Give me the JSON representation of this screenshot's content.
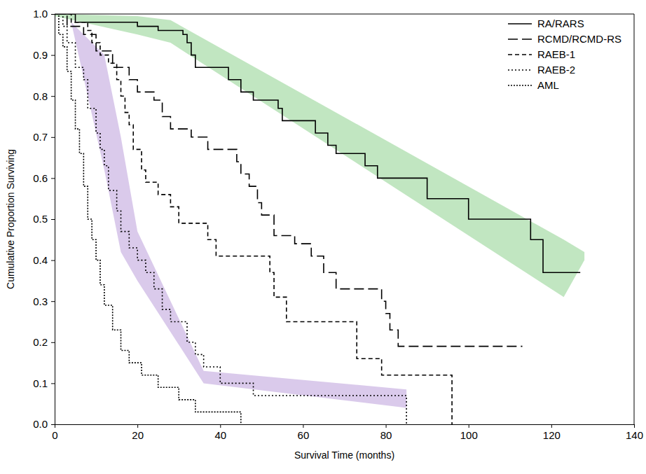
{
  "chart_data": {
    "type": "line",
    "x_label": "Survival Time (months)",
    "y_label": "Cumulative Proportion Surviving",
    "xlim": [
      0,
      140
    ],
    "ylim": [
      0,
      1
    ],
    "xticks": [
      0,
      20,
      40,
      60,
      80,
      100,
      120,
      140
    ],
    "yticks": [
      {
        "value": 0,
        "label": "0.0"
      },
      0.1,
      0.2,
      0.3,
      0.4,
      0.5,
      0.6,
      0.7,
      0.8,
      0.9,
      {
        "value": 1,
        "label": "1.0"
      }
    ],
    "legend": "upper right",
    "bands": [
      {
        "color": "#9fd89f",
        "x": [
          0,
          20,
          28,
          123,
          128
        ],
        "upper": [
          1.0,
          0.995,
          0.985,
          0.45,
          0.42
        ],
        "lower": [
          0.995,
          0.95,
          0.93,
          0.31,
          0.4
        ]
      },
      {
        "color": "#c6aee0",
        "x": [
          4,
          12,
          16,
          20,
          36,
          85
        ],
        "upper": [
          0.98,
          0.9,
          0.7,
          0.47,
          0.13,
          0.085
        ],
        "lower": [
          0.98,
          0.62,
          0.42,
          0.35,
          0.1,
          0.04
        ]
      }
    ],
    "series": [
      {
        "name": "RA/RARS",
        "color": "#000000",
        "line_style": "solid",
        "x": [
          0,
          5,
          20,
          25,
          31,
          32,
          33,
          34,
          42,
          45,
          48,
          54,
          55,
          63,
          66,
          68,
          75,
          78,
          90,
          100,
          115,
          118,
          127
        ],
        "values": [
          1.0,
          0.98,
          0.97,
          0.96,
          0.95,
          0.93,
          0.9,
          0.87,
          0.84,
          0.81,
          0.79,
          0.77,
          0.74,
          0.71,
          0.68,
          0.66,
          0.63,
          0.6,
          0.55,
          0.5,
          0.45,
          0.37,
          0.37
        ]
      },
      {
        "name": "RCMD/RCMD-RS",
        "color": "#000000",
        "line_style": "long_dash",
        "x": [
          0,
          3,
          7,
          10,
          14,
          18,
          20,
          24,
          26,
          28,
          33,
          37,
          44,
          45,
          47,
          49,
          50,
          53,
          58,
          62,
          65,
          68,
          79,
          80,
          81,
          83,
          113
        ],
        "values": [
          1.0,
          0.97,
          0.95,
          0.91,
          0.87,
          0.84,
          0.81,
          0.79,
          0.75,
          0.72,
          0.7,
          0.67,
          0.64,
          0.61,
          0.58,
          0.54,
          0.51,
          0.46,
          0.44,
          0.41,
          0.37,
          0.33,
          0.3,
          0.27,
          0.23,
          0.19,
          0.19
        ]
      },
      {
        "name": "RAEB-1",
        "color": "#000000",
        "line_style": "dashed",
        "x": [
          0,
          4,
          8,
          9,
          11,
          13,
          15,
          16,
          17,
          18,
          19,
          21,
          22,
          25,
          28,
          30,
          37,
          39,
          52,
          53,
          56,
          73,
          79,
          96
        ],
        "values": [
          1.0,
          0.98,
          0.96,
          0.93,
          0.9,
          0.88,
          0.84,
          0.8,
          0.76,
          0.73,
          0.67,
          0.62,
          0.59,
          0.56,
          0.53,
          0.49,
          0.45,
          0.41,
          0.37,
          0.31,
          0.25,
          0.16,
          0.12,
          0.0
        ]
      },
      {
        "name": "RAEB-2",
        "color": "#000000",
        "line_style": "dotted",
        "x": [
          0,
          2,
          3,
          5,
          7,
          8,
          10,
          11,
          12,
          13,
          15,
          16,
          18,
          20,
          22,
          24,
          26,
          28,
          32,
          34,
          36,
          40,
          48,
          85
        ],
        "values": [
          1.0,
          0.97,
          0.93,
          0.87,
          0.84,
          0.77,
          0.71,
          0.67,
          0.63,
          0.57,
          0.52,
          0.47,
          0.43,
          0.4,
          0.37,
          0.33,
          0.28,
          0.25,
          0.2,
          0.17,
          0.14,
          0.1,
          0.07,
          0.0
        ]
      },
      {
        "name": "AML",
        "color": "#000000",
        "line_style": "dotted",
        "x": [
          0,
          1,
          2,
          3,
          4,
          5,
          6,
          7,
          8,
          9,
          10,
          11,
          12,
          14,
          16,
          18,
          21,
          25,
          30,
          34,
          45
        ],
        "values": [
          1.0,
          0.95,
          0.92,
          0.86,
          0.79,
          0.72,
          0.66,
          0.58,
          0.5,
          0.45,
          0.4,
          0.34,
          0.29,
          0.23,
          0.18,
          0.15,
          0.12,
          0.09,
          0.06,
          0.03,
          0.0
        ]
      }
    ]
  }
}
